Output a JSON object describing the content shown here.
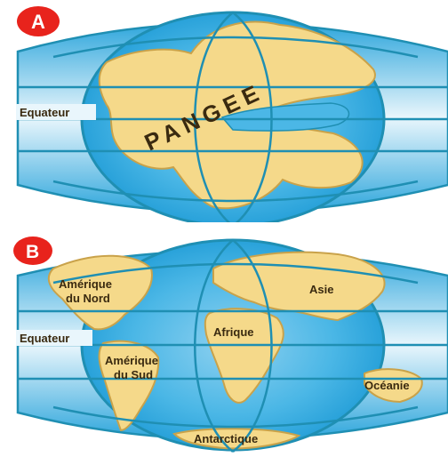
{
  "panels": [
    {
      "badge": "A",
      "equator_label": "Equateur",
      "supercontinent_label": "PANGEE"
    },
    {
      "badge": "B",
      "equator_label": "Equateur",
      "continents": [
        {
          "id": "north-america",
          "label_line1": "Amérique",
          "label_line2": "du Nord"
        },
        {
          "id": "south-america",
          "label_line1": "Amérique",
          "label_line2": "du Sud"
        },
        {
          "id": "africa",
          "label_line1": "Afrique"
        },
        {
          "id": "asia",
          "label_line1": "Asie"
        },
        {
          "id": "oceania",
          "label_line1": "Océanie"
        },
        {
          "id": "antarctica",
          "label_line1": "Antarctique"
        }
      ]
    }
  ],
  "colors": {
    "ocean_light": "#e6f4fb",
    "ocean_dark": "#2ea6dc",
    "land": "#f5d98a",
    "land_edge": "#c9a24a",
    "graticule": "#1f8fb3",
    "badge": "#e8231c"
  }
}
